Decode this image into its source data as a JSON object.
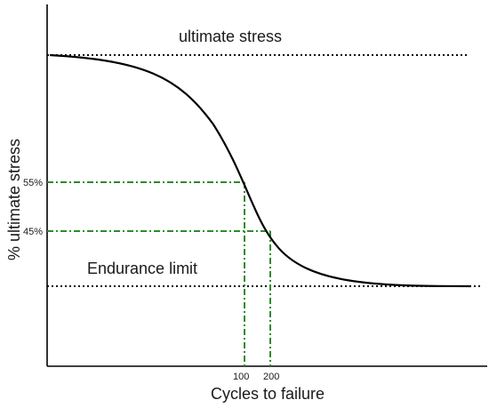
{
  "chart_data": {
    "type": "line",
    "title": "",
    "xlabel": "Cycles to failure",
    "ylabel": "% ultimate stress",
    "x_ticks": [
      "100",
      "200"
    ],
    "y_ticks": [
      "55%",
      "45%"
    ],
    "reference_lines": [
      {
        "label": "ultimate stress",
        "style": "dotted"
      },
      {
        "label": "Endurance limit",
        "style": "dotted"
      }
    ],
    "guides": [
      {
        "x": "100",
        "y": "55%",
        "color": "#2e8b2e",
        "style": "dash-dot"
      },
      {
        "x": "200",
        "y": "45%",
        "color": "#2e8b2e",
        "style": "dash-dot"
      }
    ],
    "curve": "S-N curve (sigmoid) descending from ultimate stress to endurance limit",
    "grid": false,
    "legend": "none"
  }
}
